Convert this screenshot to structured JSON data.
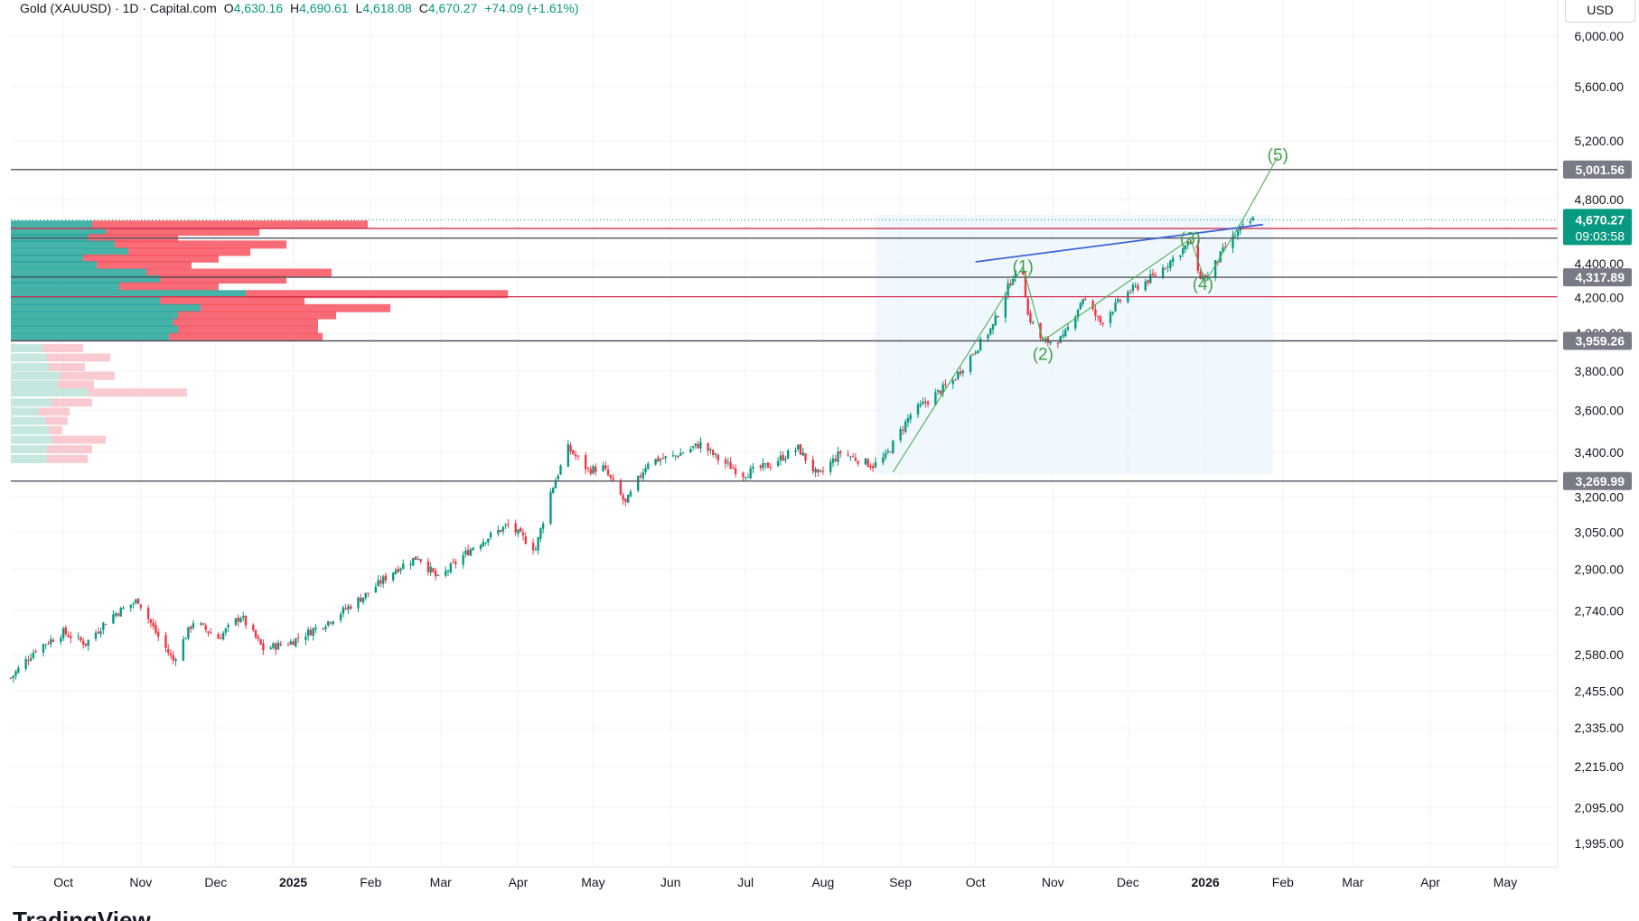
{
  "header": {
    "symbol": "Gold (XAUUSD) · 1D · Capital.com",
    "open_label": "O",
    "open": "4,630.16",
    "high_label": "H",
    "high": "4,690.61",
    "low_label": "L",
    "low": "4,618.08",
    "close_label": "C",
    "close": "4,670.27",
    "change": "+74.09 (+1.61%)"
  },
  "currency": "USD",
  "footer": {
    "logo_text": "TradingView"
  },
  "colors": {
    "up": "#089981",
    "down": "#f23645",
    "wave": "#4caf50",
    "trend": "#2962ff",
    "zone": "#e3f2fd"
  },
  "chart_data": {
    "type": "candlestick",
    "y_scale": "log",
    "ylim": [
      1940,
      6150
    ],
    "y_ticks": [
      6000,
      5600,
      5200,
      4800,
      4400,
      4200,
      4000,
      3800,
      3600,
      3400,
      3200,
      3050,
      2900,
      2740,
      2580,
      2455,
      2335,
      2215,
      2095,
      1995
    ],
    "y_tick_labels": [
      "6,000.00",
      "5,600.00",
      "5,200.00",
      "4,800.00",
      "4,400.00",
      "4,200.00",
      "4,000.00",
      "3,800.00",
      "3,600.00",
      "3,400.00",
      "3,200.00",
      "3,050.00",
      "2,900.00",
      "2,740.00",
      "2,580.00",
      "2,455.00",
      "2,335.00",
      "2,215.00",
      "2,095.00",
      "1,995.00"
    ],
    "x_range": [
      "2024-09-10",
      "2026-06-10"
    ],
    "x_ticks": [
      {
        "date": "2024-10-01",
        "label": "Oct",
        "bold": false
      },
      {
        "date": "2024-11-01",
        "label": "Nov",
        "bold": false
      },
      {
        "date": "2024-12-01",
        "label": "Dec",
        "bold": false
      },
      {
        "date": "2025-01-01",
        "label": "2025",
        "bold": true
      },
      {
        "date": "2025-02-01",
        "label": "Feb",
        "bold": false
      },
      {
        "date": "2025-03-01",
        "label": "Mar",
        "bold": false
      },
      {
        "date": "2025-04-01",
        "label": "Apr",
        "bold": false
      },
      {
        "date": "2025-05-01",
        "label": "May",
        "bold": false
      },
      {
        "date": "2025-06-01",
        "label": "Jun",
        "bold": false
      },
      {
        "date": "2025-07-01",
        "label": "Jul",
        "bold": false
      },
      {
        "date": "2025-08-01",
        "label": "Aug",
        "bold": false
      },
      {
        "date": "2025-09-01",
        "label": "Sep",
        "bold": false
      },
      {
        "date": "2025-10-01",
        "label": "Oct",
        "bold": false
      },
      {
        "date": "2025-11-01",
        "label": "Nov",
        "bold": false
      },
      {
        "date": "2025-12-01",
        "label": "Dec",
        "bold": false
      },
      {
        "date": "2026-01-01",
        "label": "2026",
        "bold": true
      },
      {
        "date": "2026-02-01",
        "label": "Feb",
        "bold": false
      },
      {
        "date": "2026-03-01",
        "label": "Mar",
        "bold": false
      },
      {
        "date": "2026-04-01",
        "label": "Apr",
        "bold": false
      },
      {
        "date": "2026-05-01",
        "label": "May",
        "bold": false
      }
    ],
    "price_path": [
      [
        "2024-09-10",
        2500
      ],
      [
        "2024-09-20",
        2600
      ],
      [
        "2024-10-01",
        2660
      ],
      [
        "2024-10-10",
        2620
      ],
      [
        "2024-10-20",
        2720
      ],
      [
        "2024-10-31",
        2780
      ],
      [
        "2024-11-07",
        2660
      ],
      [
        "2024-11-14",
        2560
      ],
      [
        "2024-11-22",
        2700
      ],
      [
        "2024-12-02",
        2640
      ],
      [
        "2024-12-11",
        2720
      ],
      [
        "2024-12-20",
        2600
      ],
      [
        "2024-12-31",
        2625
      ],
      [
        "2025-01-15",
        2700
      ],
      [
        "2025-01-30",
        2800
      ],
      [
        "2025-02-11",
        2900
      ],
      [
        "2025-02-20",
        2950
      ],
      [
        "2025-02-28",
        2860
      ],
      [
        "2025-03-14",
        2990
      ],
      [
        "2025-03-28",
        3080
      ],
      [
        "2025-04-08",
        2980
      ],
      [
        "2025-04-14",
        3220
      ],
      [
        "2025-04-21",
        3420
      ],
      [
        "2025-04-29",
        3320
      ],
      [
        "2025-05-05",
        3330
      ],
      [
        "2025-05-14",
        3170
      ],
      [
        "2025-05-23",
        3360
      ],
      [
        "2025-06-02",
        3380
      ],
      [
        "2025-06-13",
        3440
      ],
      [
        "2025-06-20",
        3370
      ],
      [
        "2025-06-30",
        3300
      ],
      [
        "2025-07-10",
        3340
      ],
      [
        "2025-07-22",
        3420
      ],
      [
        "2025-07-30",
        3290
      ],
      [
        "2025-08-08",
        3400
      ],
      [
        "2025-08-21",
        3340
      ],
      [
        "2025-08-26",
        3380
      ],
      [
        "2025-09-05",
        3580
      ],
      [
        "2025-09-22",
        3750
      ],
      [
        "2025-10-08",
        4040
      ],
      [
        "2025-10-16",
        4330
      ],
      [
        "2025-10-20",
        4350
      ],
      [
        "2025-10-22",
        4100
      ],
      [
        "2025-10-28",
        3950
      ],
      [
        "2025-11-05",
        3970
      ],
      [
        "2025-11-13",
        4200
      ],
      [
        "2025-11-20",
        4060
      ],
      [
        "2025-12-01",
        4230
      ],
      [
        "2025-12-12",
        4330
      ],
      [
        "2025-12-26",
        4530
      ],
      [
        "2025-12-29",
        4330
      ],
      [
        "2026-01-02",
        4320
      ],
      [
        "2026-01-09",
        4500
      ],
      [
        "2026-01-15",
        4610
      ],
      [
        "2026-01-20",
        4670.27
      ]
    ],
    "horizontal_levels": [
      {
        "price": 5001.56,
        "label": "5,001.56",
        "color": "#787b86"
      },
      {
        "price": 4670.27,
        "label": "4,670.27",
        "sublabel": "09:03:58",
        "color": "#089981"
      },
      {
        "price": 4317.89,
        "label": "4,317.89",
        "color": "#787b86"
      },
      {
        "price": 3959.26,
        "label": "3,959.26",
        "color": "#787b86"
      },
      {
        "price": 3269.99,
        "label": "3,269.99",
        "color": "#787b86"
      }
    ],
    "red_lines": [
      4615,
      4205
    ],
    "gray_line_extra": [
      4555
    ],
    "elliott_wave": [
      {
        "label": "(1)",
        "date": "2025-10-20",
        "price": 4381
      },
      {
        "label": "(2)",
        "date": "2025-10-28",
        "price": 3886
      },
      {
        "label": "(3)",
        "date": "2025-12-26",
        "price": 4550
      },
      {
        "label": "(4)",
        "date": "2025-12-31",
        "price": 4275
      },
      {
        "label": "(5)",
        "date": "2026-01-30",
        "price": 5100
      }
    ],
    "wave_path": [
      [
        "2025-08-29",
        3310
      ],
      [
        "2025-10-20",
        4381
      ],
      [
        "2025-10-28",
        3960
      ],
      [
        "2025-12-26",
        4550
      ],
      [
        "2026-01-01",
        4290
      ],
      [
        "2026-01-17",
        4700
      ],
      [
        "2026-01-30",
        5090
      ]
    ],
    "trend_line": [
      [
        "2025-10-01",
        4410
      ],
      [
        "2026-01-24",
        4640
      ]
    ],
    "zone": {
      "start": "2025-08-22",
      "end": "2026-01-28",
      "top": 4700,
      "bottom": 3300
    },
    "volume_profile": {
      "rows": [
        {
          "price": 4640,
          "up": 90,
          "down": 305
        },
        {
          "price": 4595,
          "up": 105,
          "down": 170
        },
        {
          "price": 4555,
          "up": 85,
          "down": 100
        },
        {
          "price": 4515,
          "up": 115,
          "down": 190
        },
        {
          "price": 4470,
          "up": 130,
          "down": 135
        },
        {
          "price": 4430,
          "up": 80,
          "down": 150
        },
        {
          "price": 4390,
          "up": 95,
          "down": 105
        },
        {
          "price": 4345,
          "up": 150,
          "down": 205
        },
        {
          "price": 4305,
          "up": 165,
          "down": 140
        },
        {
          "price": 4265,
          "up": 120,
          "down": 110
        },
        {
          "price": 4220,
          "up": 260,
          "down": 290
        },
        {
          "price": 4180,
          "up": 165,
          "down": 160
        },
        {
          "price": 4140,
          "up": 210,
          "down": 210
        },
        {
          "price": 4100,
          "up": 185,
          "down": 175
        },
        {
          "price": 4060,
          "up": 180,
          "down": 160
        },
        {
          "price": 4020,
          "up": 185,
          "down": 155
        },
        {
          "price": 3980,
          "up": 175,
          "down": 170
        },
        {
          "price": 3920,
          "up": 35,
          "down": 45,
          "faded": true
        },
        {
          "price": 3870,
          "up": 40,
          "down": 70,
          "faded": true
        },
        {
          "price": 3820,
          "up": 42,
          "down": 40,
          "faded": true
        },
        {
          "price": 3775,
          "up": 55,
          "down": 60,
          "faded": true
        },
        {
          "price": 3730,
          "up": 52,
          "down": 40,
          "faded": true
        },
        {
          "price": 3690,
          "up": 85,
          "down": 110,
          "faded": true
        },
        {
          "price": 3640,
          "up": 45,
          "down": 45,
          "faded": true
        },
        {
          "price": 3595,
          "up": 30,
          "down": 35,
          "faded": true
        },
        {
          "price": 3550,
          "up": 38,
          "down": 25,
          "faded": true
        },
        {
          "price": 3505,
          "up": 42,
          "down": 15,
          "faded": true
        },
        {
          "price": 3460,
          "up": 45,
          "down": 60,
          "faded": true
        },
        {
          "price": 3415,
          "up": 40,
          "down": 50,
          "faded": true
        },
        {
          "price": 3370,
          "up": 40,
          "down": 45,
          "faded": true
        }
      ]
    }
  }
}
